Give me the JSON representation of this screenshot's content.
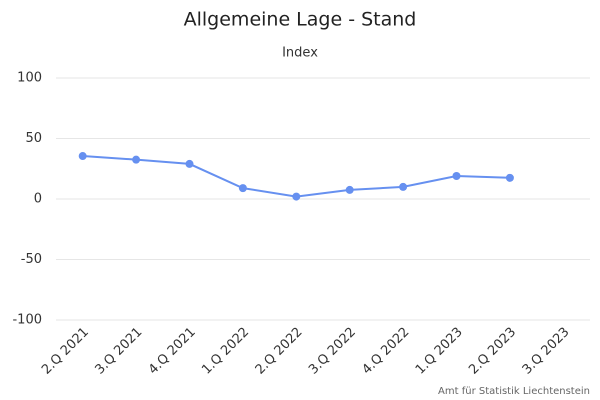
{
  "chart_data": {
    "type": "line",
    "title": "Allgemeine Lage - Stand",
    "subtitle": "Index",
    "credits": "Amt für Statistik Liechtenstein",
    "categories": [
      "2.Q 2021",
      "3.Q 2021",
      "4.Q 2021",
      "1.Q 2022",
      "2.Q 2022",
      "3.Q 2022",
      "4.Q 2022",
      "1.Q 2023",
      "2.Q 2023",
      "3.Q 2023"
    ],
    "series": [
      {
        "name": "Index",
        "color": "#6690f0",
        "values": [
          35.5,
          32.5,
          29,
          9,
          2,
          7.5,
          10,
          19,
          17.5,
          null
        ]
      }
    ],
    "ylim": [
      -100,
      100
    ],
    "yticks": [
      -100,
      -50,
      0,
      50,
      100
    ],
    "grid": true
  }
}
